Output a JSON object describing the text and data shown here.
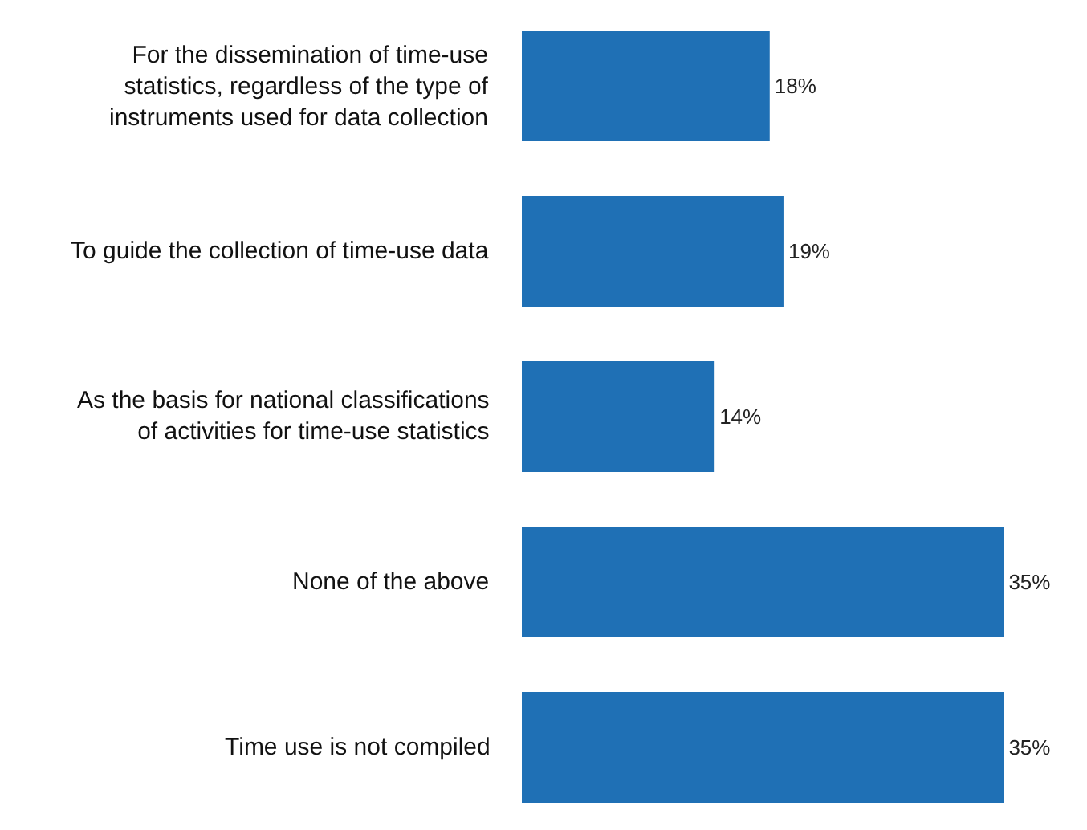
{
  "chart_data": {
    "type": "bar",
    "orientation": "horizontal",
    "categories": [
      "For the dissemination of time-use statistics, regardless of the type of instruments used for data collection",
      "To guide the collection of time-use data",
      "As the basis for national classifications of activities for time-use statistics",
      "None of the above",
      "Time use is not compiled"
    ],
    "values": [
      18,
      19,
      14,
      35,
      35
    ],
    "value_labels": [
      "18%",
      "19%",
      "14%",
      "35%",
      "35%"
    ],
    "color": "#1f70b5"
  }
}
